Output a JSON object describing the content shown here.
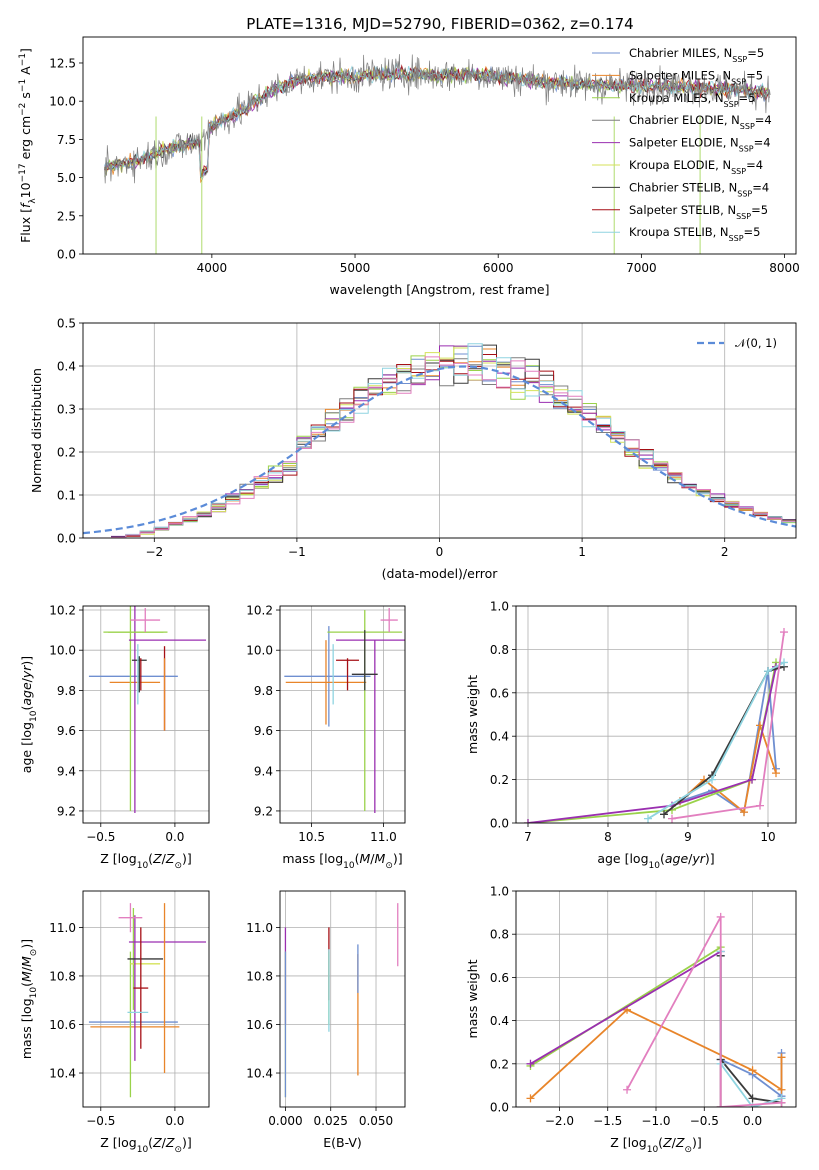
{
  "figure_title": "PLATE=1316, MJD=52790, FIBERID=0362, z=0.174",
  "colors": [
    "#6f8fd0",
    "#e8852a",
    "#9ad24a",
    "#7f7f7f",
    "#9a2fb0",
    "#d4e25a",
    "#3a3a3a",
    "#a50f15",
    "#8fd4e0",
    "#e27fbf",
    "#5b8bd8"
  ],
  "chart_data": [
    {
      "id": "spectrum",
      "type": "line",
      "title": "PLATE=1316, MJD=52790, FIBERID=0362, z=0.174",
      "xlabel": "wavelength [Angstrom, rest frame]",
      "ylabel": "Flux [f_λ 10^-17 erg cm^-2 s^-1 A^-1]",
      "xlim": [
        3100,
        8080
      ],
      "ylim": [
        0,
        14.2
      ],
      "xticks": [
        "4000",
        "5000",
        "6000",
        "7000",
        "8000"
      ],
      "yticks": [
        "0.0",
        "2.5",
        "5.0",
        "7.5",
        "10.0",
        "12.5"
      ],
      "legend_position": "right",
      "series": [
        {
          "name": "Chabrier MILES, N_SSP=5",
          "color": "#6f8fd0"
        },
        {
          "name": "Salpeter MILES, N_SSP=5",
          "color": "#e8852a"
        },
        {
          "name": "Kroupa MILES, N_SSP=5",
          "color": "#9ad24a"
        },
        {
          "name": "Chabrier ELODIE, N_SSP=4",
          "color": "#7f7f7f"
        },
        {
          "name": "Salpeter ELODIE, N_SSP=4",
          "color": "#9a2fb0"
        },
        {
          "name": "Kroupa ELODIE, N_SSP=4",
          "color": "#d4e25a"
        },
        {
          "name": "Chabrier STELIB, N_SSP=4",
          "color": "#3a3a3a"
        },
        {
          "name": "Salpeter STELIB, N_SSP=5",
          "color": "#a50f15"
        },
        {
          "name": "Kroupa STELIB, N_SSP=5",
          "color": "#8fd4e0"
        }
      ],
      "continuum_shape": [
        [
          3250,
          5.6
        ],
        [
          3500,
          6.2
        ],
        [
          3700,
          6.9
        ],
        [
          3900,
          7.3
        ],
        [
          4000,
          8.4
        ],
        [
          4200,
          9.3
        ],
        [
          4400,
          10.6
        ],
        [
          4600,
          11.4
        ],
        [
          4800,
          11.6
        ],
        [
          5000,
          11.6
        ],
        [
          5200,
          11.8
        ],
        [
          5400,
          11.8
        ],
        [
          5600,
          11.7
        ],
        [
          5800,
          11.8
        ],
        [
          6000,
          11.6
        ],
        [
          6200,
          11.4
        ],
        [
          6400,
          11.2
        ],
        [
          6600,
          11.1
        ],
        [
          6800,
          11.0
        ],
        [
          7000,
          11.0
        ],
        [
          7200,
          11.0
        ],
        [
          7400,
          10.9
        ],
        [
          7600,
          10.8
        ],
        [
          7800,
          10.6
        ],
        [
          7900,
          10.5
        ]
      ]
    },
    {
      "id": "residuals",
      "type": "histogram",
      "xlabel": "(data-model)/error",
      "ylabel": "Normed distribution",
      "xlim": [
        -2.5,
        2.5
      ],
      "ylim": [
        0,
        0.5
      ],
      "xticks": [
        "−2",
        "−1",
        "0",
        "1",
        "2"
      ],
      "yticks": [
        "0.0",
        "0.1",
        "0.2",
        "0.3",
        "0.4",
        "0.5"
      ],
      "legend": "𝒩(0, 1)",
      "legend_position": "top-right",
      "bin_width": 0.1,
      "normal_curve": {
        "mean": 0.17,
        "sigma": 1.0
      }
    },
    {
      "id": "age_vs_Z",
      "type": "errorbar",
      "xlabel": "Z [log10(Z/Z⊙)]",
      "ylabel": "age [log10(age/yr)]",
      "xlim": [
        -0.62,
        0.23
      ],
      "ylim": [
        9.14,
        10.22
      ],
      "xticks": [
        "−0.5",
        "0.0"
      ],
      "yticks": [
        "9.2",
        "9.4",
        "9.6",
        "9.8",
        "10.0",
        "10.2"
      ],
      "points": [
        {
          "x": -0.28,
          "y": 9.87,
          "xerr": 0.3,
          "yerr": 0.0,
          "color": "#6f8fd0"
        },
        {
          "x": -0.27,
          "y": 9.84,
          "xerr": 0.17,
          "yerr": 0.0,
          "color": "#e8852a"
        },
        {
          "x": -0.28,
          "y": 10.09,
          "xerr": 0.0,
          "yerr": 0.0,
          "color": "#9ad24a"
        },
        {
          "x": -0.3,
          "y": 9.84,
          "xerr": 0.0,
          "yerr": 0.64,
          "color": "#9ad24a"
        },
        {
          "x": -0.27,
          "y": 9.83,
          "xerr": 0.0,
          "yerr": 0.64,
          "color": "#9a2fb0"
        },
        {
          "x": -0.25,
          "y": 10.09,
          "xerr": 0.2,
          "yerr": 0.0,
          "color": "#9ad24a"
        },
        {
          "x": -0.05,
          "y": 10.05,
          "xerr": 0.26,
          "yerr": 0.0,
          "color": "#9a2fb0"
        },
        {
          "x": -0.24,
          "y": 9.88,
          "xerr": 0.0,
          "yerr": 0.09,
          "color": "#3a3a3a"
        },
        {
          "x": -0.24,
          "y": 9.95,
          "xerr": 0.05,
          "yerr": 0.0,
          "color": "#3a3a3a"
        },
        {
          "x": -0.23,
          "y": 9.88,
          "xerr": 0.0,
          "yerr": 0.08,
          "color": "#a50f15"
        },
        {
          "x": -0.07,
          "y": 9.81,
          "xerr": 0.0,
          "yerr": 0.21,
          "color": "#a50f15"
        },
        {
          "x": -0.07,
          "y": 9.78,
          "xerr": 0.0,
          "yerr": 0.18,
          "color": "#e8852a"
        },
        {
          "x": -0.25,
          "y": 9.88,
          "xerr": 0.0,
          "yerr": 0.15,
          "color": "#8fd4e0"
        },
        {
          "x": -0.2,
          "y": 10.15,
          "xerr": 0.1,
          "yerr": 0.06,
          "color": "#e27fbf"
        }
      ]
    },
    {
      "id": "age_vs_mass",
      "type": "errorbar",
      "xlabel": "mass [log10(M/M⊙)]",
      "ylabel": "",
      "xlim": [
        10.28,
        11.15
      ],
      "ylim": [
        9.14,
        10.22
      ],
      "xticks": [
        "10.5",
        "11.0"
      ],
      "yticks": [
        "9.2",
        "9.4",
        "9.6",
        "9.8",
        "10.0",
        "10.2"
      ],
      "points": [
        {
          "x": 10.61,
          "y": 9.87,
          "xerr": 0.3,
          "yerr": 0.0,
          "color": "#6f8fd0"
        },
        {
          "x": 10.62,
          "y": 9.87,
          "xerr": 0.0,
          "yerr": 0.25,
          "color": "#6f8fd0"
        },
        {
          "x": 10.6,
          "y": 9.84,
          "xerr": 0.28,
          "yerr": 0.0,
          "color": "#e8852a"
        },
        {
          "x": 10.6,
          "y": 9.84,
          "xerr": 0.0,
          "yerr": 0.21,
          "color": "#e8852a"
        },
        {
          "x": 10.87,
          "y": 10.09,
          "xerr": 0.26,
          "yerr": 0.0,
          "color": "#9ad24a"
        },
        {
          "x": 10.87,
          "y": 9.7,
          "xerr": 0.0,
          "yerr": 0.5,
          "color": "#9ad24a"
        },
        {
          "x": 10.94,
          "y": 10.05,
          "xerr": 0.27,
          "yerr": 0.0,
          "color": "#9a2fb0"
        },
        {
          "x": 10.94,
          "y": 9.62,
          "xerr": 0.0,
          "yerr": 0.43,
          "color": "#9a2fb0"
        },
        {
          "x": 10.87,
          "y": 9.88,
          "xerr": 0.09,
          "yerr": 0.0,
          "color": "#3a3a3a"
        },
        {
          "x": 10.87,
          "y": 9.95,
          "xerr": 0.0,
          "yerr": 0.15,
          "color": "#3a3a3a"
        },
        {
          "x": 10.75,
          "y": 9.95,
          "xerr": 0.08,
          "yerr": 0.0,
          "color": "#a50f15"
        },
        {
          "x": 10.75,
          "y": 9.88,
          "xerr": 0.0,
          "yerr": 0.08,
          "color": "#a50f15"
        },
        {
          "x": 10.65,
          "y": 9.88,
          "xerr": 0.0,
          "yerr": 0.15,
          "color": "#8fd4e0"
        },
        {
          "x": 11.04,
          "y": 10.15,
          "xerr": 0.06,
          "yerr": 0.06,
          "color": "#e27fbf"
        }
      ]
    },
    {
      "id": "massweight_vs_age",
      "type": "line",
      "xlabel": "age [log10(age/yr)]",
      "ylabel": "mass weight",
      "xlim": [
        6.85,
        10.35
      ],
      "ylim": [
        0,
        1.0
      ],
      "xticks": [
        "7",
        "8",
        "9",
        "10"
      ],
      "yticks": [
        "0.0",
        "0.2",
        "0.4",
        "0.6",
        "0.8",
        "1.0"
      ],
      "series": [
        {
          "color": "#6f8fd0",
          "x": [
            8.9,
            9.3,
            9.7,
            10.0,
            10.1
          ],
          "y": [
            0.1,
            0.15,
            0.05,
            0.7,
            0.25
          ]
        },
        {
          "color": "#e8852a",
          "x": [
            8.9,
            9.2,
            9.7,
            9.9,
            10.1
          ],
          "y": [
            0.1,
            0.2,
            0.05,
            0.45,
            0.23
          ]
        },
        {
          "color": "#9ad24a",
          "x": [
            7.0,
            8.8,
            9.8,
            10.1
          ],
          "y": [
            0.0,
            0.06,
            0.2,
            0.74
          ]
        },
        {
          "color": "#9a2fb0",
          "x": [
            7.0,
            8.8,
            9.8,
            10.1
          ],
          "y": [
            0.0,
            0.08,
            0.2,
            0.72
          ]
        },
        {
          "color": "#3a3a3a",
          "x": [
            8.7,
            9.3,
            10.0,
            10.2
          ],
          "y": [
            0.04,
            0.22,
            0.7,
            0.72
          ]
        },
        {
          "color": "#8fd4e0",
          "x": [
            8.5,
            9.3,
            10.0,
            10.2
          ],
          "y": [
            0.02,
            0.2,
            0.7,
            0.74
          ]
        },
        {
          "color": "#e27fbf",
          "x": [
            8.8,
            9.9,
            10.2
          ],
          "y": [
            0.02,
            0.08,
            0.88
          ]
        }
      ]
    },
    {
      "id": "mass_vs_Z",
      "type": "errorbar",
      "xlabel": "Z [log10(Z/Z⊙)]",
      "ylabel": "mass [log10(M/M⊙)]",
      "xlim": [
        -0.62,
        0.23
      ],
      "ylim": [
        10.26,
        11.15
      ],
      "xticks": [
        "−0.5",
        "0.0"
      ],
      "yticks": [
        "10.4",
        "10.6",
        "10.8",
        "11.0"
      ],
      "points": [
        {
          "x": -0.28,
          "y": 10.61,
          "xerr": 0.3,
          "yerr": 0.0,
          "color": "#6f8fd0"
        },
        {
          "x": -0.27,
          "y": 10.59,
          "xerr": 0.3,
          "yerr": 0.0,
          "color": "#e8852a"
        },
        {
          "x": -0.3,
          "y": 10.6,
          "xerr": 0.0,
          "yerr": 0.3,
          "color": "#9ad24a"
        },
        {
          "x": -0.28,
          "y": 10.87,
          "xerr": 0.0,
          "yerr": 0.21,
          "color": "#9ad24a"
        },
        {
          "x": -0.2,
          "y": 10.85,
          "xerr": 0.1,
          "yerr": 0.0,
          "color": "#d4e25a"
        },
        {
          "x": -0.05,
          "y": 10.94,
          "xerr": 0.26,
          "yerr": 0.0,
          "color": "#9a2fb0"
        },
        {
          "x": -0.27,
          "y": 10.75,
          "xerr": 0.0,
          "yerr": 0.3,
          "color": "#9a2fb0"
        },
        {
          "x": -0.2,
          "y": 10.87,
          "xerr": 0.12,
          "yerr": 0.0,
          "color": "#3a3a3a"
        },
        {
          "x": -0.23,
          "y": 10.75,
          "xerr": 0.05,
          "yerr": 0.0,
          "color": "#a50f15"
        },
        {
          "x": -0.23,
          "y": 10.75,
          "xerr": 0.0,
          "yerr": 0.25,
          "color": "#a50f15"
        },
        {
          "x": -0.07,
          "y": 10.75,
          "xerr": 0.0,
          "yerr": 0.35,
          "color": "#e8852a"
        },
        {
          "x": -0.25,
          "y": 10.65,
          "xerr": 0.07,
          "yerr": 0.0,
          "color": "#8fd4e0"
        },
        {
          "x": -0.3,
          "y": 11.04,
          "xerr": 0.08,
          "yerr": 0.06,
          "color": "#e27fbf"
        }
      ]
    },
    {
      "id": "mass_vs_ebv",
      "type": "errorbar",
      "xlabel": "E(B-V)",
      "ylabel": "",
      "xlim": [
        -0.003,
        0.066
      ],
      "ylim": [
        10.26,
        11.15
      ],
      "xticks": [
        "0.000",
        "0.025",
        "0.050"
      ],
      "yticks": [
        "10.4",
        "10.6",
        "10.8",
        "11.0"
      ],
      "points": [
        {
          "x": 0.0,
          "y": 10.8,
          "xerr": 0.0,
          "yerr": 0.2,
          "color": "#9a2fb0"
        },
        {
          "x": 0.0,
          "y": 10.6,
          "xerr": 0.0,
          "yerr": 0.3,
          "color": "#d4e25a"
        },
        {
          "x": 0.0,
          "y": 10.6,
          "xerr": 0.0,
          "yerr": 0.3,
          "color": "#6f8fd0"
        },
        {
          "x": 0.024,
          "y": 10.85,
          "xerr": 0.0,
          "yerr": 0.15,
          "color": "#a50f15"
        },
        {
          "x": 0.024,
          "y": 10.75,
          "xerr": 0.0,
          "yerr": 0.15,
          "color": "#9ad24a"
        },
        {
          "x": 0.024,
          "y": 10.74,
          "xerr": 0.0,
          "yerr": 0.17,
          "color": "#8fd4e0"
        },
        {
          "x": 0.04,
          "y": 10.64,
          "xerr": 0.0,
          "yerr": 0.25,
          "color": "#e8852a"
        },
        {
          "x": 0.04,
          "y": 10.83,
          "xerr": 0.0,
          "yerr": 0.1,
          "color": "#6f8fd0"
        },
        {
          "x": 0.062,
          "y": 10.97,
          "xerr": 0.0,
          "yerr": 0.13,
          "color": "#e27fbf"
        }
      ]
    },
    {
      "id": "massweight_vs_Z",
      "type": "line",
      "xlabel": "Z [log10(Z/Z⊙)]",
      "ylabel": "mass weight",
      "xlim": [
        -2.45,
        0.45
      ],
      "ylim": [
        0,
        1.0
      ],
      "xticks": [
        "−2.0",
        "−1.5",
        "−1.0",
        "−0.5",
        "0.0"
      ],
      "yticks": [
        "0.0",
        "0.2",
        "0.4",
        "0.6",
        "0.8",
        "1.0"
      ],
      "series": [
        {
          "color": "#6f8fd0",
          "x": [
            -0.33,
            -0.33,
            0.0,
            0.3,
            0.3
          ],
          "y": [
            0.7,
            0.22,
            0.15,
            0.05,
            0.25
          ]
        },
        {
          "color": "#e8852a",
          "x": [
            -2.3,
            -1.3,
            0.0,
            0.3,
            0.3
          ],
          "y": [
            0.04,
            0.45,
            0.17,
            0.08,
            0.23
          ]
        },
        {
          "color": "#9ad24a",
          "x": [
            -2.3,
            -0.33,
            -0.33
          ],
          "y": [
            0.19,
            0.74,
            0.0
          ]
        },
        {
          "color": "#9a2fb0",
          "x": [
            -2.3,
            -0.33,
            -0.33
          ],
          "y": [
            0.2,
            0.72,
            0.0
          ]
        },
        {
          "color": "#3a3a3a",
          "x": [
            -0.33,
            -0.33,
            0.0,
            0.3
          ],
          "y": [
            0.7,
            0.22,
            0.04,
            0.02
          ]
        },
        {
          "color": "#8fd4e0",
          "x": [
            -0.33,
            -0.33,
            0.0,
            0.3
          ],
          "y": [
            0.72,
            0.2,
            0.0,
            0.04
          ]
        },
        {
          "color": "#e27fbf",
          "x": [
            -1.3,
            -0.33,
            -0.33,
            0.3
          ],
          "y": [
            0.08,
            0.88,
            0.0,
            0.02
          ]
        }
      ]
    }
  ]
}
